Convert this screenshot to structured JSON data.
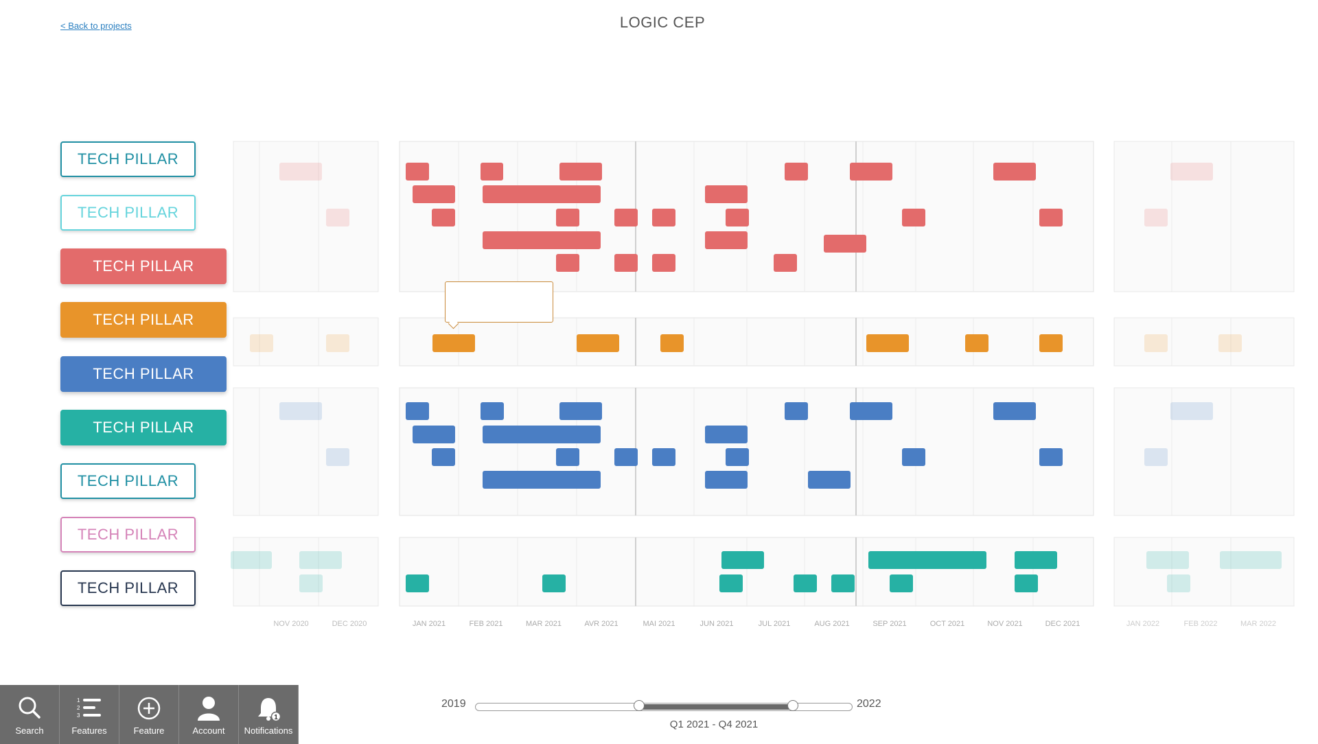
{
  "header": {
    "back_label": "< Back to projects",
    "title": "LOGIC CEP"
  },
  "pillars": [
    {
      "label": "TECH PILLAR",
      "style": "outline",
      "color": "#1f8fa3"
    },
    {
      "label": "TECH PILLAR",
      "style": "outline",
      "color": "#65d4dc"
    },
    {
      "label": "TECH PILLAR",
      "style": "filled",
      "color": "#e36b6b"
    },
    {
      "label": "TECH PILLAR",
      "style": "filled",
      "color": "#e8942a"
    },
    {
      "label": "TECH PILLAR",
      "style": "filled",
      "color": "#4a7ec4"
    },
    {
      "label": "TECH PILLAR",
      "style": "filled",
      "color": "#26b1a4"
    },
    {
      "label": "TECH PILLAR",
      "style": "outline",
      "color": "#1f8fa3"
    },
    {
      "label": "TECH PILLAR",
      "style": "outline",
      "color": "#d583b8"
    },
    {
      "label": "TECH PILLAR",
      "style": "outline",
      "color": "#27364f"
    }
  ],
  "timeline": {
    "months": [
      "JAN 2021",
      "FEB 2021",
      "MAR 2021",
      "AVR 2021",
      "MAI 2021",
      "JUN 2021",
      "JUL 2021",
      "AUG 2021",
      "SEP 2021",
      "OCT 2021",
      "NOV 2021",
      "DEC 2021"
    ],
    "prev_months": [
      "NOV 2020",
      "DEC 2020"
    ],
    "next_months": [
      "JAN 2022",
      "FEB 2022",
      "MAR 2022"
    ],
    "colors": {
      "red": "#e36b6b",
      "orange": "#e8942a",
      "blue": "#4a7ec4",
      "teal": "#26b1a4"
    }
  },
  "toolbar": [
    {
      "label": "Search",
      "icon": "search-icon"
    },
    {
      "label": "Features",
      "icon": "list-icon"
    },
    {
      "label": "Feature",
      "icon": "plus-circle-icon"
    },
    {
      "label": "Account",
      "icon": "user-icon"
    },
    {
      "label": "Notifications",
      "icon": "bell-icon",
      "badge": "1"
    }
  ],
  "range": {
    "start": "2019",
    "end": "2022",
    "label": "Q1 2021 - Q4 2021"
  }
}
